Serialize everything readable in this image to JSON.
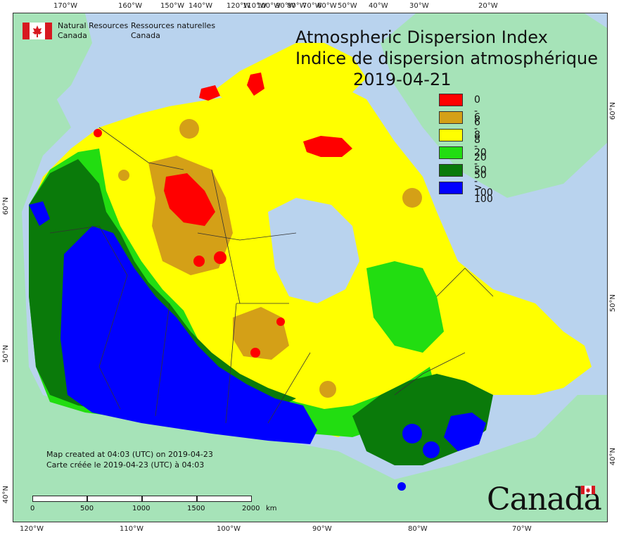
{
  "title": {
    "en": "Atmospheric Dispersion Index",
    "fr": "Indice de dispersion atmosphérique",
    "date": "2019-04-21"
  },
  "agency": {
    "en_line1": "Natural Resources",
    "en_line2": "Canada",
    "fr_line1": "Ressources naturelles",
    "fr_line2": "Canada"
  },
  "legend": [
    {
      "label": "0 - 6",
      "color": "#ff0000"
    },
    {
      "label": "6 - 8",
      "color": "#d4a017"
    },
    {
      "label": "8 - 20",
      "color": "#ffff00"
    },
    {
      "label": "20 - 50",
      "color": "#22dd11"
    },
    {
      "label": "50 - 100",
      "color": "#0a7a0a"
    },
    {
      "label": "> 100",
      "color": "#0000ff"
    }
  ],
  "created": {
    "en": "Map created at 04:03 (UTC) on 2019-04-23",
    "fr": "Carte créée le 2019-04-23 (UTC) à 04:03"
  },
  "scale": {
    "labels": [
      "0",
      "500",
      "1000",
      "1500",
      "2000"
    ],
    "unit": "km"
  },
  "top_ticks": [
    "170°W",
    "160°W",
    "150°W",
    "140°W",
    "120°W",
    "100°W",
    "80°W",
    "60°W",
    "40°W",
    "30°W",
    "20°W",
    "110°W",
    "90°W",
    "70°W",
    "50°W"
  ],
  "bottom_ticks": [
    "120°W",
    "110°W",
    "100°W",
    "90°W",
    "80°W",
    "70°W"
  ],
  "left_ticks": [
    "60°N",
    "50°N",
    "40°N"
  ],
  "right_ticks": [
    "60°N",
    "50°N",
    "40°N"
  ],
  "wordmark": "Canada",
  "colors": {
    "ocean": "#b9d3ee",
    "land_other": "#a6e3b8",
    "border": "#333333"
  }
}
